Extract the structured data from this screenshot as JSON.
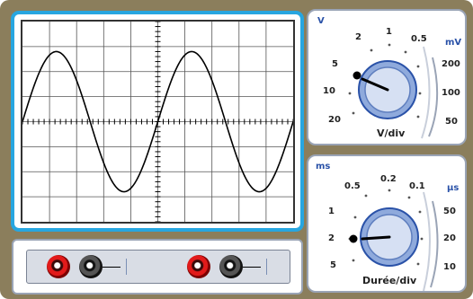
{
  "oscilloscope": {
    "grid": {
      "h_divisions": 10,
      "v_divisions": 8
    },
    "trace_periods": 2,
    "trace_color": "#000000",
    "screen_border_color": "#27a6e0"
  },
  "volt_knob": {
    "caption": "V/div",
    "unit_left": "V",
    "unit_right": "mV",
    "left_scale": [
      "2",
      "5",
      "10",
      "20"
    ],
    "top_scale": [
      "1",
      "0.5"
    ],
    "right_scale": [
      "200",
      "100",
      "50"
    ],
    "selected": "5"
  },
  "time_knob": {
    "caption": "Durée/div",
    "unit_left": "ms",
    "unit_right": "µs",
    "left_scale": [
      "0.5",
      "1",
      "2",
      "5"
    ],
    "top_scale": [
      "0.2",
      "0.1"
    ],
    "right_scale": [
      "50",
      "20",
      "10"
    ],
    "selected": "2"
  },
  "inputs": {
    "channels": [
      {
        "name": "channel-1"
      },
      {
        "name": "channel-2"
      }
    ]
  },
  "colors": {
    "frame": "#8b7e5c",
    "panel_border": "#9aa4b6",
    "jack_red": "#e21a1a",
    "unit_blue": "#2a52a8"
  }
}
